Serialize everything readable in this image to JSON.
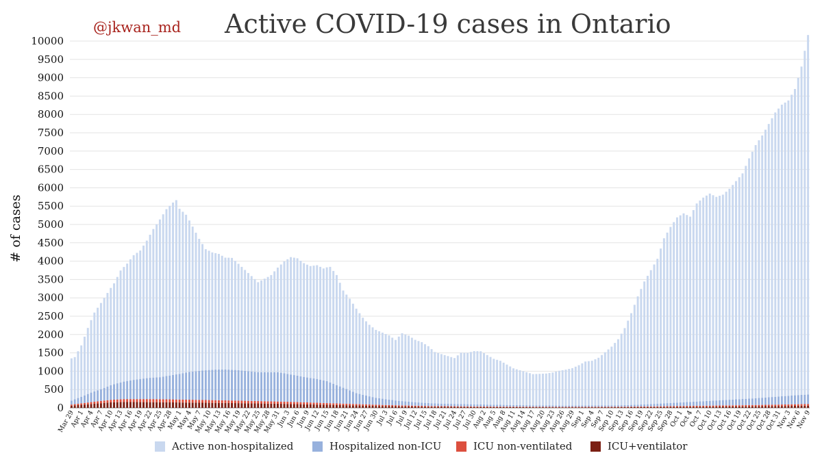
{
  "header": {
    "handle": "@jkwan_md"
  },
  "chart_data": {
    "type": "bar",
    "stacked": true,
    "title": "Active COVID-19 cases in Ontario",
    "xlabel": "",
    "ylabel": "# of cases",
    "ylim": [
      0,
      10000
    ],
    "yticks": [
      0,
      500,
      1000,
      1500,
      2000,
      2500,
      3000,
      3500,
      4000,
      4500,
      5000,
      5500,
      6000,
      6500,
      7000,
      7500,
      8000,
      8500,
      9000,
      9500,
      10000
    ],
    "grid": true,
    "legend_position": "bottom",
    "x_tick_labels": [
      "Mar 29",
      "Apr 1",
      "Apr 4",
      "Apr 7",
      "Apr 10",
      "Apr 13",
      "Apr 16",
      "Apr 19",
      "Apr 22",
      "Apr 25",
      "Apr 28",
      "May 1",
      "May 4",
      "May 7",
      "May 10",
      "May 13",
      "May 16",
      "May 19",
      "May 22",
      "May 25",
      "May 28",
      "May 31",
      "Jun 3",
      "Jun 6",
      "Jun 9",
      "Jun 12",
      "Jun 15",
      "Jun 18",
      "Jun 21",
      "Jun 24",
      "Jun 27",
      "Jun 30",
      "Jul 3",
      "Jul 6",
      "Jul 9",
      "Jul 12",
      "Jul 15",
      "Jul 18",
      "Jul 21",
      "Jul 24",
      "Jul 27",
      "Jul 30",
      "Aug 2",
      "Aug 5",
      "Aug 8",
      "Aug 11",
      "Aug 14",
      "Aug 17",
      "Aug 20",
      "Aug 23",
      "Aug 26",
      "Aug 29",
      "Sep 1",
      "Sep 4",
      "Sep 7",
      "Sep 10",
      "Sep 13",
      "Sep 16",
      "Sep 19",
      "Sep 22",
      "Sep 25",
      "Sep 28",
      "Oct 1",
      "Oct 4",
      "Oct 7",
      "Oct 10",
      "Oct 13",
      "Oct 16",
      "Oct 19",
      "Oct 22",
      "Oct 25",
      "Oct 28",
      "Oct 31",
      "Nov 3",
      "Nov 6",
      "Nov 9"
    ],
    "series": [
      {
        "name": "Active non-hospitalized",
        "color": "#c9d8ef",
        "anchors": [
          {
            "day": 0,
            "value": 1150
          },
          {
            "day": 1,
            "value": 1150
          },
          {
            "day": 3,
            "value": 1400
          },
          {
            "day": 5,
            "value": 1800
          },
          {
            "day": 7,
            "value": 2150
          },
          {
            "day": 9,
            "value": 2350
          },
          {
            "day": 11,
            "value": 2550
          },
          {
            "day": 13,
            "value": 2750
          },
          {
            "day": 15,
            "value": 3050
          },
          {
            "day": 17,
            "value": 3200
          },
          {
            "day": 19,
            "value": 3400
          },
          {
            "day": 21,
            "value": 3500
          },
          {
            "day": 23,
            "value": 3750
          },
          {
            "day": 25,
            "value": 4050
          },
          {
            "day": 27,
            "value": 4300
          },
          {
            "day": 29,
            "value": 4550
          },
          {
            "day": 31,
            "value": 4700
          },
          {
            "day": 32,
            "value": 4750
          },
          {
            "day": 33,
            "value": 4500
          },
          {
            "day": 35,
            "value": 4300
          },
          {
            "day": 37,
            "value": 3950
          },
          {
            "day": 39,
            "value": 3600
          },
          {
            "day": 41,
            "value": 3300
          },
          {
            "day": 43,
            "value": 3200
          },
          {
            "day": 45,
            "value": 3150
          },
          {
            "day": 47,
            "value": 3050
          },
          {
            "day": 49,
            "value": 3050
          },
          {
            "day": 51,
            "value": 2900
          },
          {
            "day": 53,
            "value": 2750
          },
          {
            "day": 55,
            "value": 2600
          },
          {
            "day": 57,
            "value": 2450
          },
          {
            "day": 59,
            "value": 2550
          },
          {
            "day": 61,
            "value": 2650
          },
          {
            "day": 63,
            "value": 2850
          },
          {
            "day": 65,
            "value": 3050
          },
          {
            "day": 67,
            "value": 3200
          },
          {
            "day": 69,
            "value": 3200
          },
          {
            "day": 71,
            "value": 3100
          },
          {
            "day": 73,
            "value": 3050
          },
          {
            "day": 75,
            "value": 3100
          },
          {
            "day": 77,
            "value": 3050
          },
          {
            "day": 79,
            "value": 3150
          },
          {
            "day": 81,
            "value": 3000
          },
          {
            "day": 83,
            "value": 2650
          },
          {
            "day": 85,
            "value": 2500
          },
          {
            "day": 87,
            "value": 2300
          },
          {
            "day": 89,
            "value": 2100
          },
          {
            "day": 91,
            "value": 1950
          },
          {
            "day": 93,
            "value": 1850
          },
          {
            "day": 95,
            "value": 1800
          },
          {
            "day": 97,
            "value": 1750
          },
          {
            "day": 99,
            "value": 1650
          },
          {
            "day": 101,
            "value": 1850
          },
          {
            "day": 103,
            "value": 1800
          },
          {
            "day": 105,
            "value": 1700
          },
          {
            "day": 107,
            "value": 1650
          },
          {
            "day": 109,
            "value": 1550
          },
          {
            "day": 111,
            "value": 1400
          },
          {
            "day": 113,
            "value": 1350
          },
          {
            "day": 115,
            "value": 1300
          },
          {
            "day": 117,
            "value": 1250
          },
          {
            "day": 119,
            "value": 1400
          },
          {
            "day": 121,
            "value": 1400
          },
          {
            "day": 123,
            "value": 1450
          },
          {
            "day": 125,
            "value": 1450
          },
          {
            "day": 127,
            "value": 1350
          },
          {
            "day": 129,
            "value": 1250
          },
          {
            "day": 131,
            "value": 1200
          },
          {
            "day": 133,
            "value": 1100
          },
          {
            "day": 135,
            "value": 1000
          },
          {
            "day": 137,
            "value": 950
          },
          {
            "day": 139,
            "value": 900
          },
          {
            "day": 141,
            "value": 850
          },
          {
            "day": 143,
            "value": 860
          },
          {
            "day": 145,
            "value": 870
          },
          {
            "day": 147,
            "value": 900
          },
          {
            "day": 149,
            "value": 950
          },
          {
            "day": 151,
            "value": 980
          },
          {
            "day": 153,
            "value": 1020
          },
          {
            "day": 155,
            "value": 1100
          },
          {
            "day": 157,
            "value": 1200
          },
          {
            "day": 159,
            "value": 1220
          },
          {
            "day": 161,
            "value": 1300
          },
          {
            "day": 163,
            "value": 1450
          },
          {
            "day": 165,
            "value": 1600
          },
          {
            "day": 167,
            "value": 1800
          },
          {
            "day": 169,
            "value": 2100
          },
          {
            "day": 171,
            "value": 2500
          },
          {
            "day": 173,
            "value": 2950
          },
          {
            "day": 175,
            "value": 3350
          },
          {
            "day": 177,
            "value": 3650
          },
          {
            "day": 179,
            "value": 3950
          },
          {
            "day": 181,
            "value": 4500
          },
          {
            "day": 183,
            "value": 4800
          },
          {
            "day": 185,
            "value": 5050
          },
          {
            "day": 187,
            "value": 5150
          },
          {
            "day": 189,
            "value": 5050
          },
          {
            "day": 191,
            "value": 5400
          },
          {
            "day": 193,
            "value": 5550
          },
          {
            "day": 195,
            "value": 5650
          },
          {
            "day": 197,
            "value": 5550
          },
          {
            "day": 199,
            "value": 5600
          },
          {
            "day": 201,
            "value": 5750
          },
          {
            "day": 203,
            "value": 5950
          },
          {
            "day": 205,
            "value": 6150
          },
          {
            "day": 207,
            "value": 6550
          },
          {
            "day": 209,
            "value": 6900
          },
          {
            "day": 211,
            "value": 7150
          },
          {
            "day": 213,
            "value": 7450
          },
          {
            "day": 215,
            "value": 7750
          },
          {
            "day": 217,
            "value": 7950
          },
          {
            "day": 219,
            "value": 8050
          },
          {
            "day": 221,
            "value": 8350
          },
          {
            "day": 223,
            "value": 8950
          },
          {
            "day": 225,
            "value": 9800
          }
        ]
      },
      {
        "name": "Hospitalized non-ICU",
        "color": "#97b1dd",
        "anchors": [
          {
            "day": 0,
            "value": 110
          },
          {
            "day": 3,
            "value": 180
          },
          {
            "day": 6,
            "value": 260
          },
          {
            "day": 9,
            "value": 320
          },
          {
            "day": 12,
            "value": 400
          },
          {
            "day": 15,
            "value": 460
          },
          {
            "day": 18,
            "value": 510
          },
          {
            "day": 21,
            "value": 550
          },
          {
            "day": 24,
            "value": 580
          },
          {
            "day": 27,
            "value": 600
          },
          {
            "day": 30,
            "value": 650
          },
          {
            "day": 33,
            "value": 700
          },
          {
            "day": 36,
            "value": 760
          },
          {
            "day": 39,
            "value": 790
          },
          {
            "day": 42,
            "value": 820
          },
          {
            "day": 45,
            "value": 840
          },
          {
            "day": 48,
            "value": 840
          },
          {
            "day": 51,
            "value": 830
          },
          {
            "day": 54,
            "value": 810
          },
          {
            "day": 57,
            "value": 790
          },
          {
            "day": 60,
            "value": 790
          },
          {
            "day": 63,
            "value": 800
          },
          {
            "day": 66,
            "value": 760
          },
          {
            "day": 69,
            "value": 720
          },
          {
            "day": 72,
            "value": 680
          },
          {
            "day": 75,
            "value": 650
          },
          {
            "day": 78,
            "value": 600
          },
          {
            "day": 81,
            "value": 500
          },
          {
            "day": 84,
            "value": 400
          },
          {
            "day": 87,
            "value": 300
          },
          {
            "day": 90,
            "value": 240
          },
          {
            "day": 93,
            "value": 190
          },
          {
            "day": 96,
            "value": 160
          },
          {
            "day": 99,
            "value": 130
          },
          {
            "day": 102,
            "value": 110
          },
          {
            "day": 106,
            "value": 90
          },
          {
            "day": 112,
            "value": 70
          },
          {
            "day": 120,
            "value": 60
          },
          {
            "day": 130,
            "value": 50
          },
          {
            "day": 140,
            "value": 40
          },
          {
            "day": 150,
            "value": 35
          },
          {
            "day": 160,
            "value": 35
          },
          {
            "day": 168,
            "value": 40
          },
          {
            "day": 176,
            "value": 60
          },
          {
            "day": 184,
            "value": 90
          },
          {
            "day": 192,
            "value": 120
          },
          {
            "day": 200,
            "value": 150
          },
          {
            "day": 208,
            "value": 180
          },
          {
            "day": 216,
            "value": 220
          },
          {
            "day": 222,
            "value": 250
          },
          {
            "day": 225,
            "value": 260
          }
        ]
      },
      {
        "name": "ICU non-ventilated",
        "color": "#dc4f3e",
        "anchors": [
          {
            "day": 0,
            "value": 30
          },
          {
            "day": 4,
            "value": 45
          },
          {
            "day": 8,
            "value": 60
          },
          {
            "day": 12,
            "value": 70
          },
          {
            "day": 16,
            "value": 80
          },
          {
            "day": 25,
            "value": 85
          },
          {
            "day": 35,
            "value": 80
          },
          {
            "day": 50,
            "value": 70
          },
          {
            "day": 65,
            "value": 60
          },
          {
            "day": 80,
            "value": 45
          },
          {
            "day": 95,
            "value": 30
          },
          {
            "day": 110,
            "value": 20
          },
          {
            "day": 130,
            "value": 15
          },
          {
            "day": 150,
            "value": 12
          },
          {
            "day": 170,
            "value": 15
          },
          {
            "day": 190,
            "value": 25
          },
          {
            "day": 210,
            "value": 35
          },
          {
            "day": 225,
            "value": 45
          }
        ]
      },
      {
        "name": "ICU+ventilator",
        "color": "#7b1f13",
        "anchors": [
          {
            "day": 0,
            "value": 60
          },
          {
            "day": 4,
            "value": 90
          },
          {
            "day": 8,
            "value": 120
          },
          {
            "day": 12,
            "value": 150
          },
          {
            "day": 16,
            "value": 160
          },
          {
            "day": 25,
            "value": 155
          },
          {
            "day": 35,
            "value": 145
          },
          {
            "day": 50,
            "value": 130
          },
          {
            "day": 65,
            "value": 110
          },
          {
            "day": 80,
            "value": 80
          },
          {
            "day": 95,
            "value": 50
          },
          {
            "day": 110,
            "value": 30
          },
          {
            "day": 130,
            "value": 20
          },
          {
            "day": 150,
            "value": 15
          },
          {
            "day": 170,
            "value": 18
          },
          {
            "day": 190,
            "value": 30
          },
          {
            "day": 210,
            "value": 45
          },
          {
            "day": 225,
            "value": 60
          }
        ]
      }
    ]
  }
}
